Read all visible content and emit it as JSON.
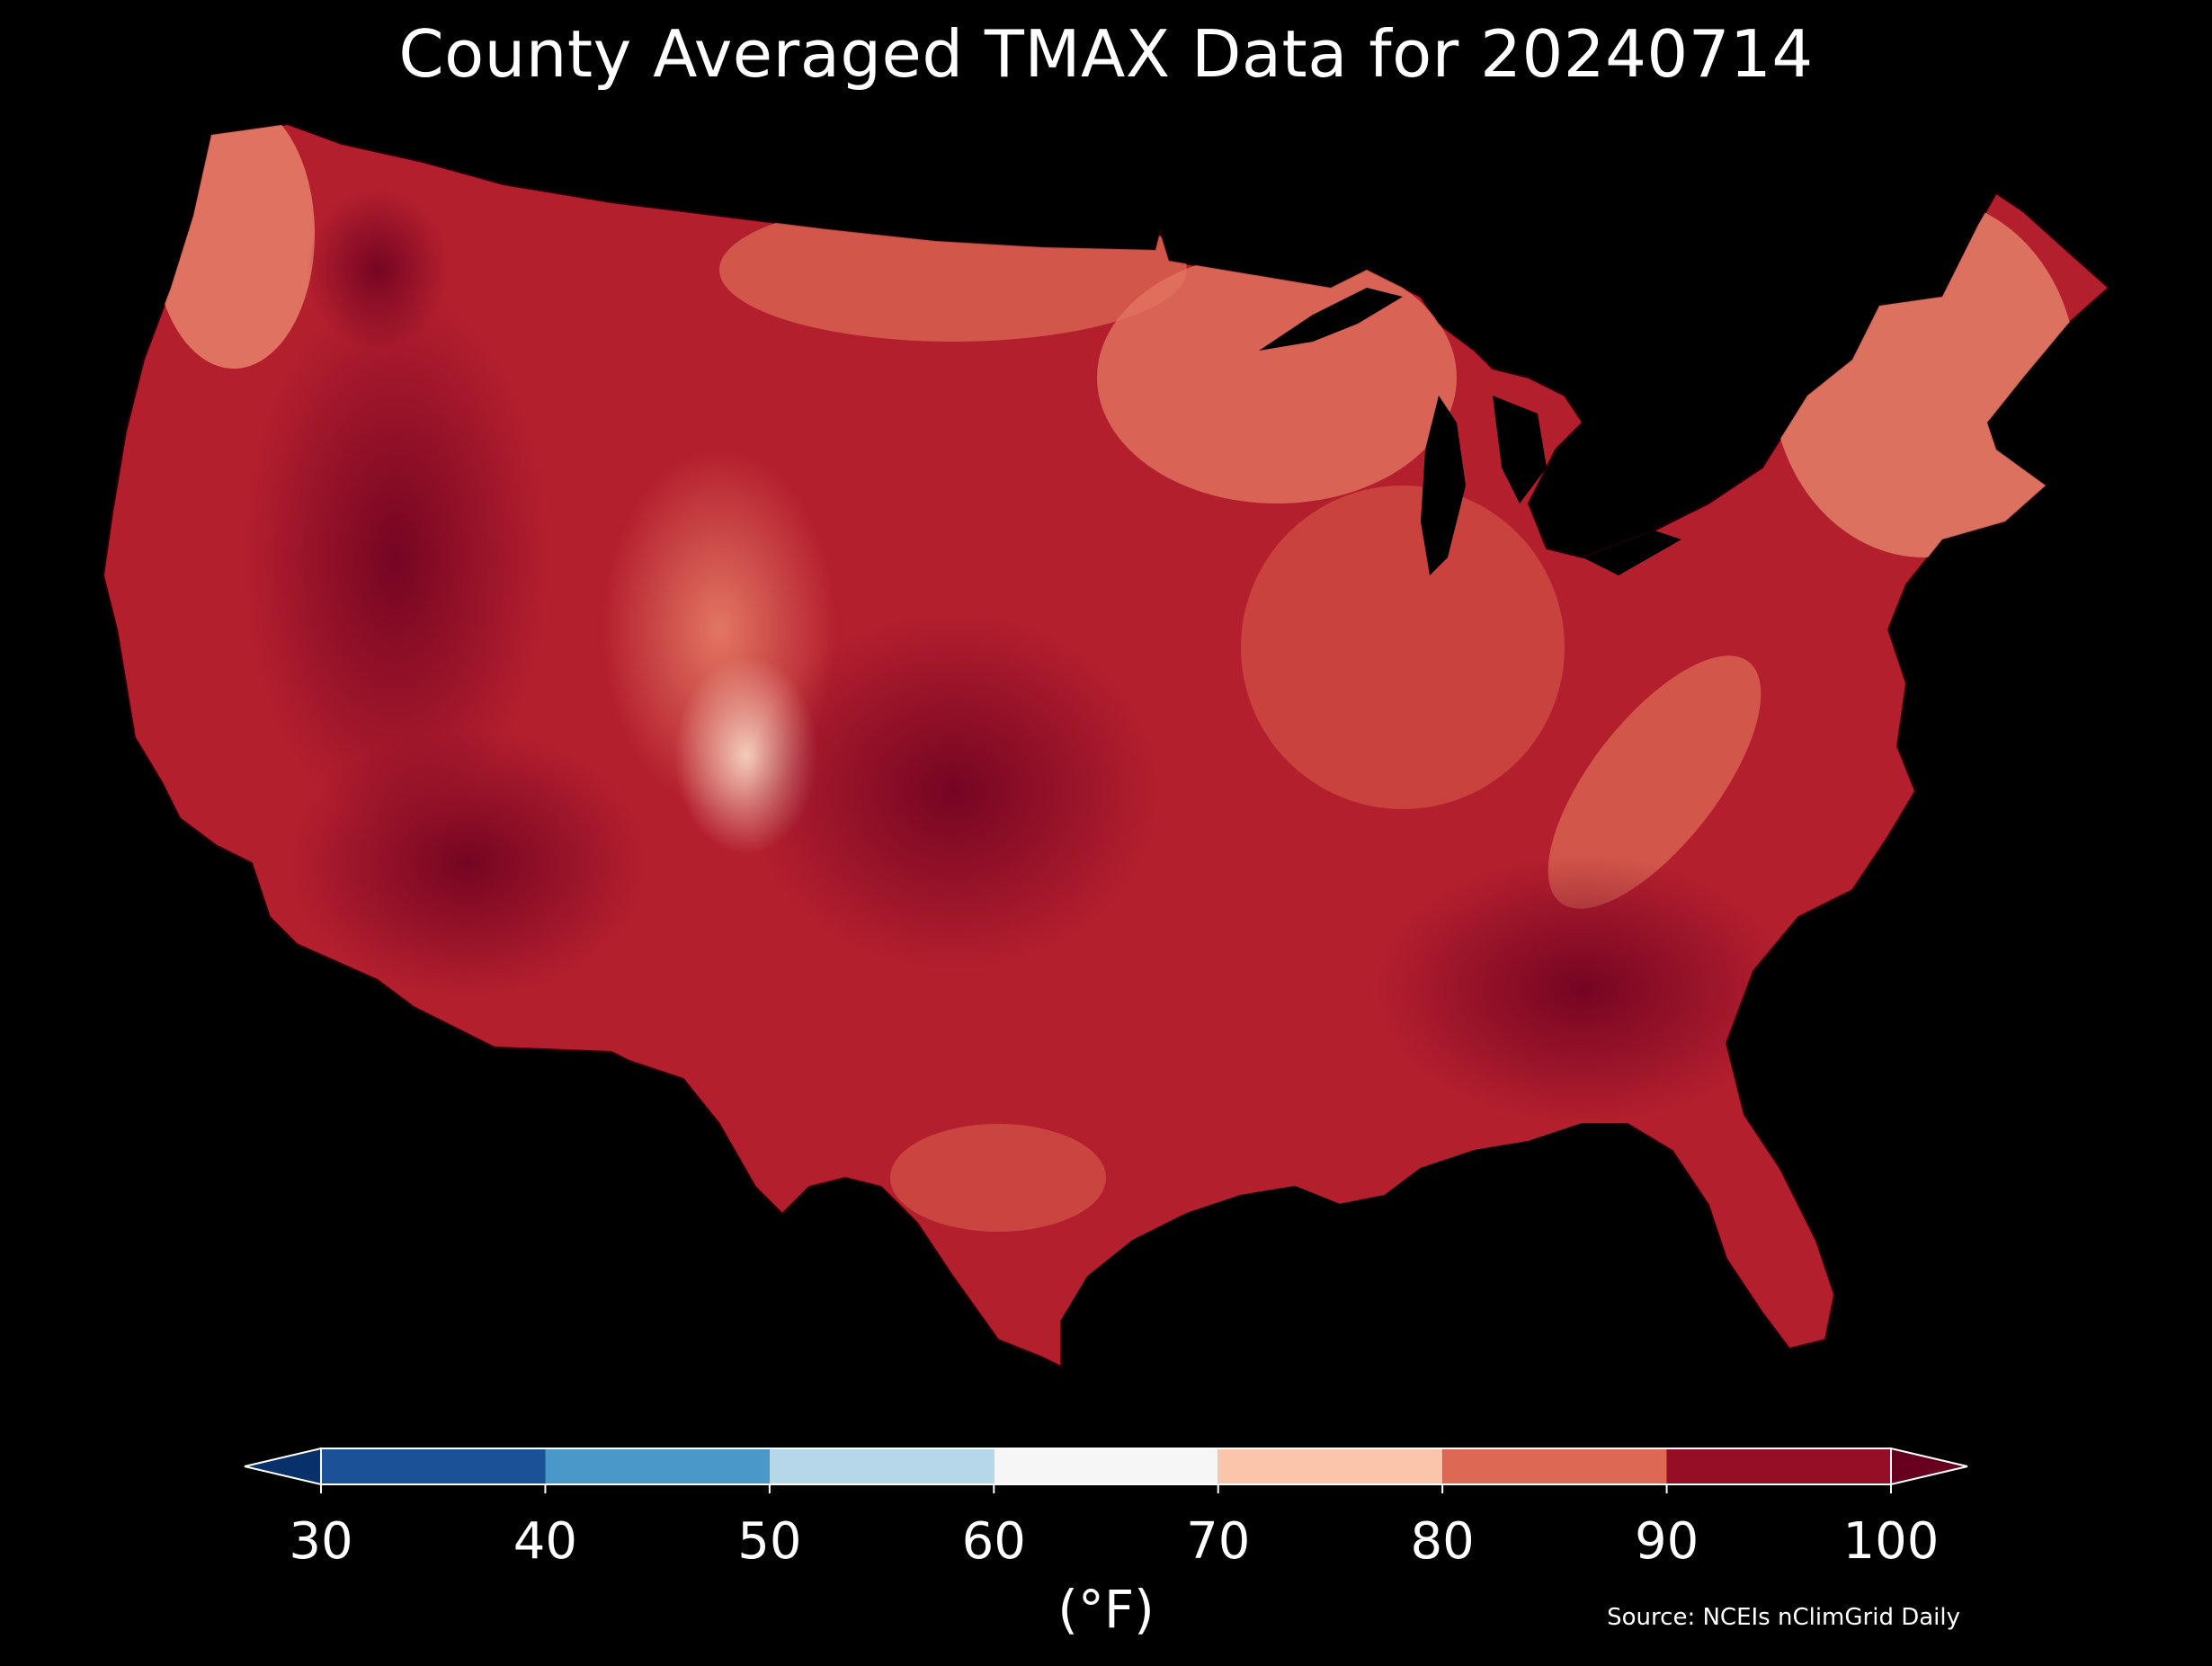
{
  "title": "County Averaged TMAX Data for 20240714",
  "colorbar": {
    "unit_label": "(°F)",
    "ticks": [
      "30",
      "40",
      "50",
      "60",
      "70",
      "80",
      "90",
      "100"
    ],
    "bins": [
      {
        "from": 30,
        "to": 40,
        "color": "#1a5197"
      },
      {
        "from": 40,
        "to": 50,
        "color": "#4a98c9"
      },
      {
        "from": 50,
        "to": 60,
        "color": "#b6d7ea"
      },
      {
        "from": 60,
        "to": 70,
        "color": "#f6f6f6"
      },
      {
        "from": 70,
        "to": 80,
        "color": "#fbc5ab"
      },
      {
        "from": 80,
        "to": 90,
        "color": "#dd6853"
      },
      {
        "from": 90,
        "to": 100,
        "color": "#960e26"
      }
    ],
    "under_color": "#08306b",
    "over_color": "#67001f"
  },
  "source": "Source: NCEIs nClimGrid Daily",
  "map": {
    "region": "Contiguous United States",
    "variable": "TMAX",
    "background_color": "#000000",
    "dominant_color": "#b41f2e"
  }
}
